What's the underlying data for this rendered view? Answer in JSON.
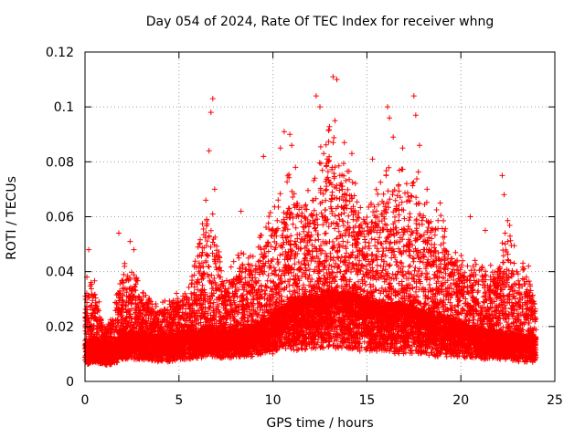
{
  "chart_data": {
    "type": "scatter",
    "title": "Day 054 of 2024, Rate Of TEC Index for receiver whng",
    "xlabel": "GPS time / hours",
    "ylabel": "ROTI / TECUs",
    "xlim": [
      0,
      25
    ],
    "ylim": [
      0,
      0.12
    ],
    "xticks": [
      "0",
      "5",
      "10",
      "15",
      "20",
      "25"
    ],
    "yticks": [
      "0",
      "0.02",
      "0.04",
      "0.06",
      "0.08",
      "0.1",
      "0.12"
    ],
    "grid": true,
    "marker": "+",
    "color": "#ff0000",
    "x_range_of_data": [
      0,
      24
    ],
    "envelope": {
      "x": [
        0,
        0.5,
        1,
        1.5,
        2,
        2.5,
        3,
        3.5,
        4,
        4.5,
        5,
        5.5,
        6,
        6.5,
        7,
        7.5,
        8,
        8.5,
        9,
        9.5,
        10,
        10.5,
        11,
        11.5,
        12,
        12.5,
        13,
        13.5,
        14,
        14.5,
        15,
        15.5,
        16,
        16.5,
        17,
        17.5,
        18,
        18.5,
        19,
        19.5,
        20,
        20.5,
        21,
        21.5,
        22,
        22.5,
        23,
        23.5,
        24
      ],
      "median": [
        0.013,
        0.015,
        0.012,
        0.013,
        0.016,
        0.017,
        0.016,
        0.016,
        0.015,
        0.015,
        0.016,
        0.017,
        0.017,
        0.019,
        0.018,
        0.017,
        0.017,
        0.018,
        0.019,
        0.02,
        0.023,
        0.025,
        0.027,
        0.028,
        0.028,
        0.029,
        0.031,
        0.03,
        0.03,
        0.029,
        0.028,
        0.027,
        0.026,
        0.026,
        0.026,
        0.025,
        0.024,
        0.023,
        0.022,
        0.021,
        0.02,
        0.018,
        0.018,
        0.017,
        0.017,
        0.016,
        0.016,
        0.015,
        0.015
      ],
      "upper": [
        0.035,
        0.038,
        0.02,
        0.025,
        0.045,
        0.043,
        0.033,
        0.03,
        0.028,
        0.032,
        0.033,
        0.035,
        0.05,
        0.07,
        0.06,
        0.038,
        0.045,
        0.05,
        0.045,
        0.06,
        0.065,
        0.07,
        0.08,
        0.075,
        0.07,
        0.085,
        0.095,
        0.085,
        0.08,
        0.07,
        0.065,
        0.07,
        0.08,
        0.075,
        0.08,
        0.085,
        0.07,
        0.065,
        0.06,
        0.05,
        0.05,
        0.045,
        0.045,
        0.042,
        0.045,
        0.06,
        0.045,
        0.042,
        0.03
      ],
      "lower": [
        0.006,
        0.007,
        0.006,
        0.006,
        0.008,
        0.008,
        0.008,
        0.007,
        0.007,
        0.007,
        0.008,
        0.008,
        0.008,
        0.009,
        0.009,
        0.008,
        0.009,
        0.009,
        0.009,
        0.01,
        0.01,
        0.011,
        0.011,
        0.011,
        0.012,
        0.012,
        0.012,
        0.012,
        0.012,
        0.011,
        0.011,
        0.011,
        0.011,
        0.01,
        0.01,
        0.01,
        0.01,
        0.009,
        0.009,
        0.009,
        0.009,
        0.008,
        0.008,
        0.008,
        0.008,
        0.008,
        0.007,
        0.007,
        0.007
      ]
    },
    "outliers": [
      {
        "x": 0.2,
        "y": 0.048
      },
      {
        "x": 0.1,
        "y": 0.038
      },
      {
        "x": 1.8,
        "y": 0.054
      },
      {
        "x": 2.4,
        "y": 0.051
      },
      {
        "x": 2.6,
        "y": 0.048
      },
      {
        "x": 6.6,
        "y": 0.084
      },
      {
        "x": 6.8,
        "y": 0.103
      },
      {
        "x": 6.7,
        "y": 0.098
      },
      {
        "x": 6.9,
        "y": 0.07
      },
      {
        "x": 8.3,
        "y": 0.062
      },
      {
        "x": 9.5,
        "y": 0.082
      },
      {
        "x": 10.4,
        "y": 0.085
      },
      {
        "x": 10.6,
        "y": 0.091
      },
      {
        "x": 10.9,
        "y": 0.09
      },
      {
        "x": 11.0,
        "y": 0.086
      },
      {
        "x": 11.2,
        "y": 0.078
      },
      {
        "x": 12.3,
        "y": 0.104
      },
      {
        "x": 12.5,
        "y": 0.1
      },
      {
        "x": 12.7,
        "y": 0.083
      },
      {
        "x": 13.2,
        "y": 0.111
      },
      {
        "x": 13.4,
        "y": 0.11
      },
      {
        "x": 13.3,
        "y": 0.095
      },
      {
        "x": 13.8,
        "y": 0.087
      },
      {
        "x": 14.2,
        "y": 0.083
      },
      {
        "x": 15.3,
        "y": 0.081
      },
      {
        "x": 16.1,
        "y": 0.1
      },
      {
        "x": 16.2,
        "y": 0.096
      },
      {
        "x": 16.4,
        "y": 0.089
      },
      {
        "x": 16.9,
        "y": 0.085
      },
      {
        "x": 17.5,
        "y": 0.104
      },
      {
        "x": 17.6,
        "y": 0.097
      },
      {
        "x": 17.8,
        "y": 0.086
      },
      {
        "x": 18.2,
        "y": 0.07
      },
      {
        "x": 18.9,
        "y": 0.065
      },
      {
        "x": 20.5,
        "y": 0.06
      },
      {
        "x": 21.3,
        "y": 0.055
      },
      {
        "x": 22.2,
        "y": 0.075
      },
      {
        "x": 22.3,
        "y": 0.068
      },
      {
        "x": 22.5,
        "y": 0.051
      },
      {
        "x": 23.6,
        "y": 0.042
      }
    ]
  }
}
